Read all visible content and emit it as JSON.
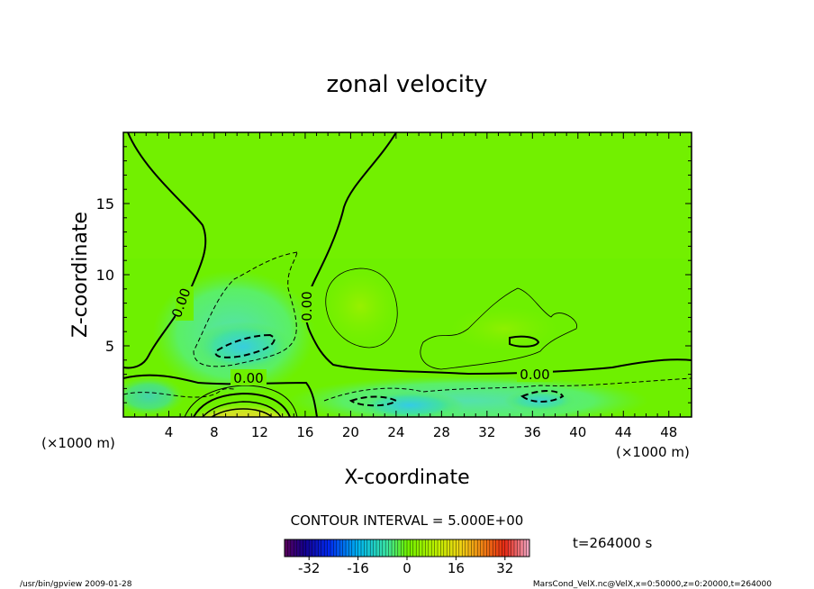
{
  "chart_data": {
    "type": "heatmap",
    "title": "zonal velocity",
    "xlabel": "X-coordinate",
    "ylabel": "Z-coordinate",
    "x_unit": "(×1000 m)",
    "y_unit": "(×1000 m)",
    "xlim": [
      0,
      50
    ],
    "ylim": [
      0,
      20
    ],
    "x_ticks": [
      4,
      8,
      12,
      16,
      20,
      24,
      28,
      32,
      36,
      40,
      44,
      48
    ],
    "y_ticks": [
      5,
      10,
      15
    ],
    "contour_interval_text": "CONTOUR INTERVAL = 5.000E+00",
    "zero_contour_label": "0.00",
    "colorbar": {
      "range": [
        -40,
        40
      ],
      "ticks": [
        -32,
        -16,
        0,
        16,
        32
      ]
    },
    "time_text": "t=264000 s",
    "footer_left": "/usr/bin/gpview   2009-01-28",
    "footer_right": "MarsCond_VelX.nc@VelX,x=0:50000,z=0:20000,t=264000",
    "colors": {
      "background_field": "#6ef000",
      "positive_core": "#e04010",
      "negative_core": "#40d0f0"
    }
  }
}
